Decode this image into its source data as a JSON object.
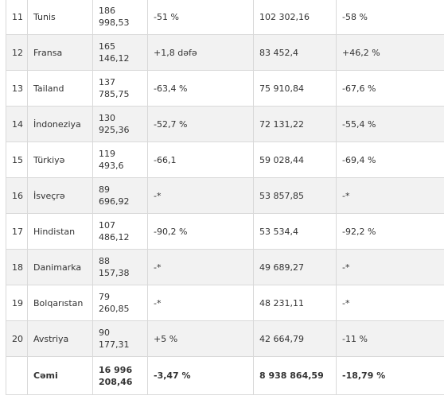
{
  "rows": [
    {
      "rank": "11",
      "country": "Tunis",
      "value1": [
        "186",
        "998,53"
      ],
      "change1": "-51 %",
      "value2": "102 302,16",
      "change2": "-58 %"
    },
    {
      "rank": "12",
      "country": "Fransa",
      "value1": [
        "165",
        "146,12"
      ],
      "change1": "+1,8 dəfə",
      "value2": "83 452,4",
      "change2": "+46,2 %"
    },
    {
      "rank": "13",
      "country": "Tailand",
      "value1": [
        "137",
        "785,75"
      ],
      "change1": "-63,4 %",
      "value2": "75 910,84",
      "change2": "-67,6 %"
    },
    {
      "rank": "14",
      "country": "İndoneziya",
      "value1": [
        "130",
        "925,36"
      ],
      "change1": "-52,7 %",
      "value2": "72 131,22",
      "change2": "-55,4 %"
    },
    {
      "rank": "15",
      "country": "Türkiyə",
      "value1": [
        "119",
        "493,6"
      ],
      "change1": "-66,1",
      "value2": "59 028,44",
      "change2": "-69,4 %"
    },
    {
      "rank": "16",
      "country": "İsveçrə",
      "value1": [
        "89",
        "696,92"
      ],
      "change1": "-*",
      "value2": "53 857,85",
      "change2": "-*"
    },
    {
      "rank": "17",
      "country": "Hindistan",
      "value1": [
        "107",
        "486,12"
      ],
      "change1": "-90,2 %",
      "value2": "53 534,4",
      "change2": "-92,2 %"
    },
    {
      "rank": "18",
      "country": "Danimarka",
      "value1": [
        "88",
        "157,38"
      ],
      "change1": "-*",
      "value2": "49 689,27",
      "change2": "-*"
    },
    {
      "rank": "19",
      "country": "Bolqarıstan",
      "value1": [
        "79",
        "260,85"
      ],
      "change1": "-*",
      "value2": "48 231,11",
      "change2": "-*"
    },
    {
      "rank": "20",
      "country": "Avstriya",
      "value1": [
        "90",
        "177,31"
      ],
      "change1": "+5 %",
      "value2": "42 664,79",
      "change2": "-11 %"
    }
  ],
  "total": {
    "rank": "",
    "country": "Cəmi",
    "value1": [
      "16 996",
      "208,46"
    ],
    "change1": "-3,47 %",
    "value2": "8 938 864,59",
    "change2": "-18,79 %"
  }
}
